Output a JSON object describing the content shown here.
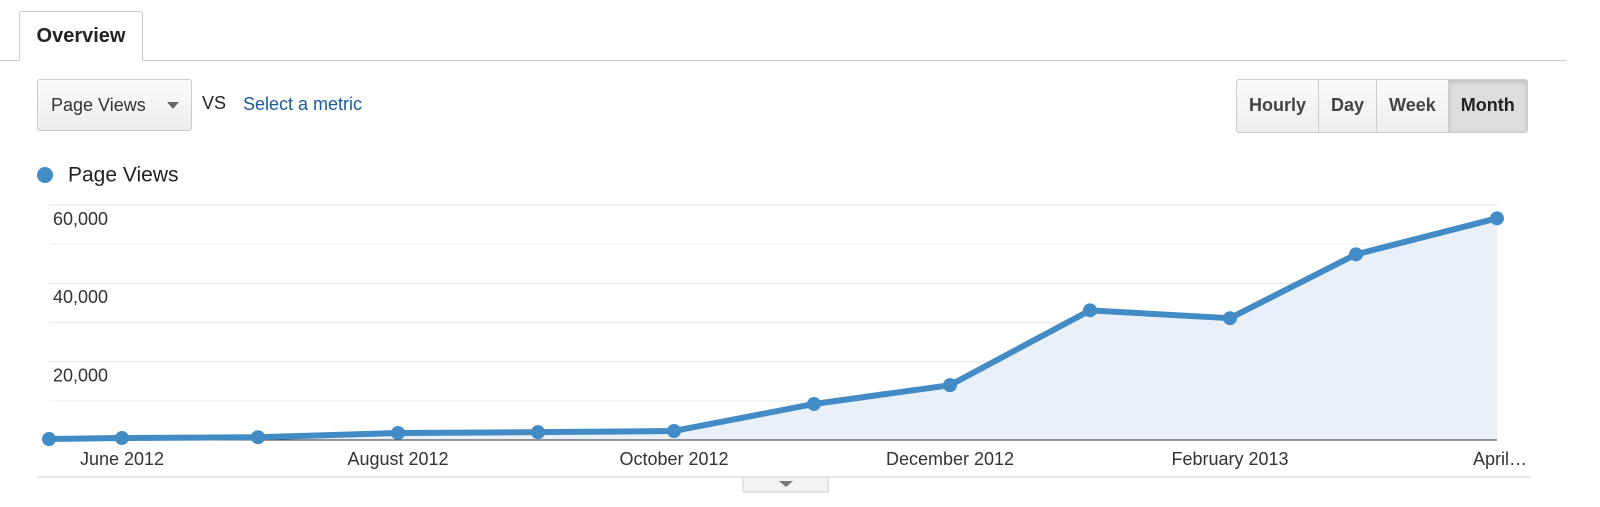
{
  "tabs": [
    "Overview"
  ],
  "controls": {
    "metric": "Page Views",
    "vs": "VS",
    "select_metric": "Select a metric",
    "granularity": [
      "Hourly",
      "Day",
      "Week",
      "Month"
    ],
    "active_granularity": "Month"
  },
  "chart_data": {
    "type": "line",
    "categories": [
      null,
      "June 2012",
      null,
      "August 2012",
      null,
      "October 2012",
      null,
      "December 2012",
      null,
      "February 2013",
      null,
      "April…"
    ],
    "series": [
      {
        "name": "Page Views",
        "color": "#428bc5",
        "values": [
          250,
          500,
          700,
          1800,
          2000,
          2300,
          9200,
          14000,
          33100,
          31100,
          47400,
          56600
        ]
      }
    ],
    "ylim": [
      0,
      60000
    ],
    "yticks": [
      {
        "value": 20000,
        "label": "20,000"
      },
      {
        "value": 40000,
        "label": "40,000"
      },
      {
        "value": 60000,
        "label": "60,000"
      }
    ],
    "grid": true,
    "area_fill": "#e9f0f8"
  }
}
